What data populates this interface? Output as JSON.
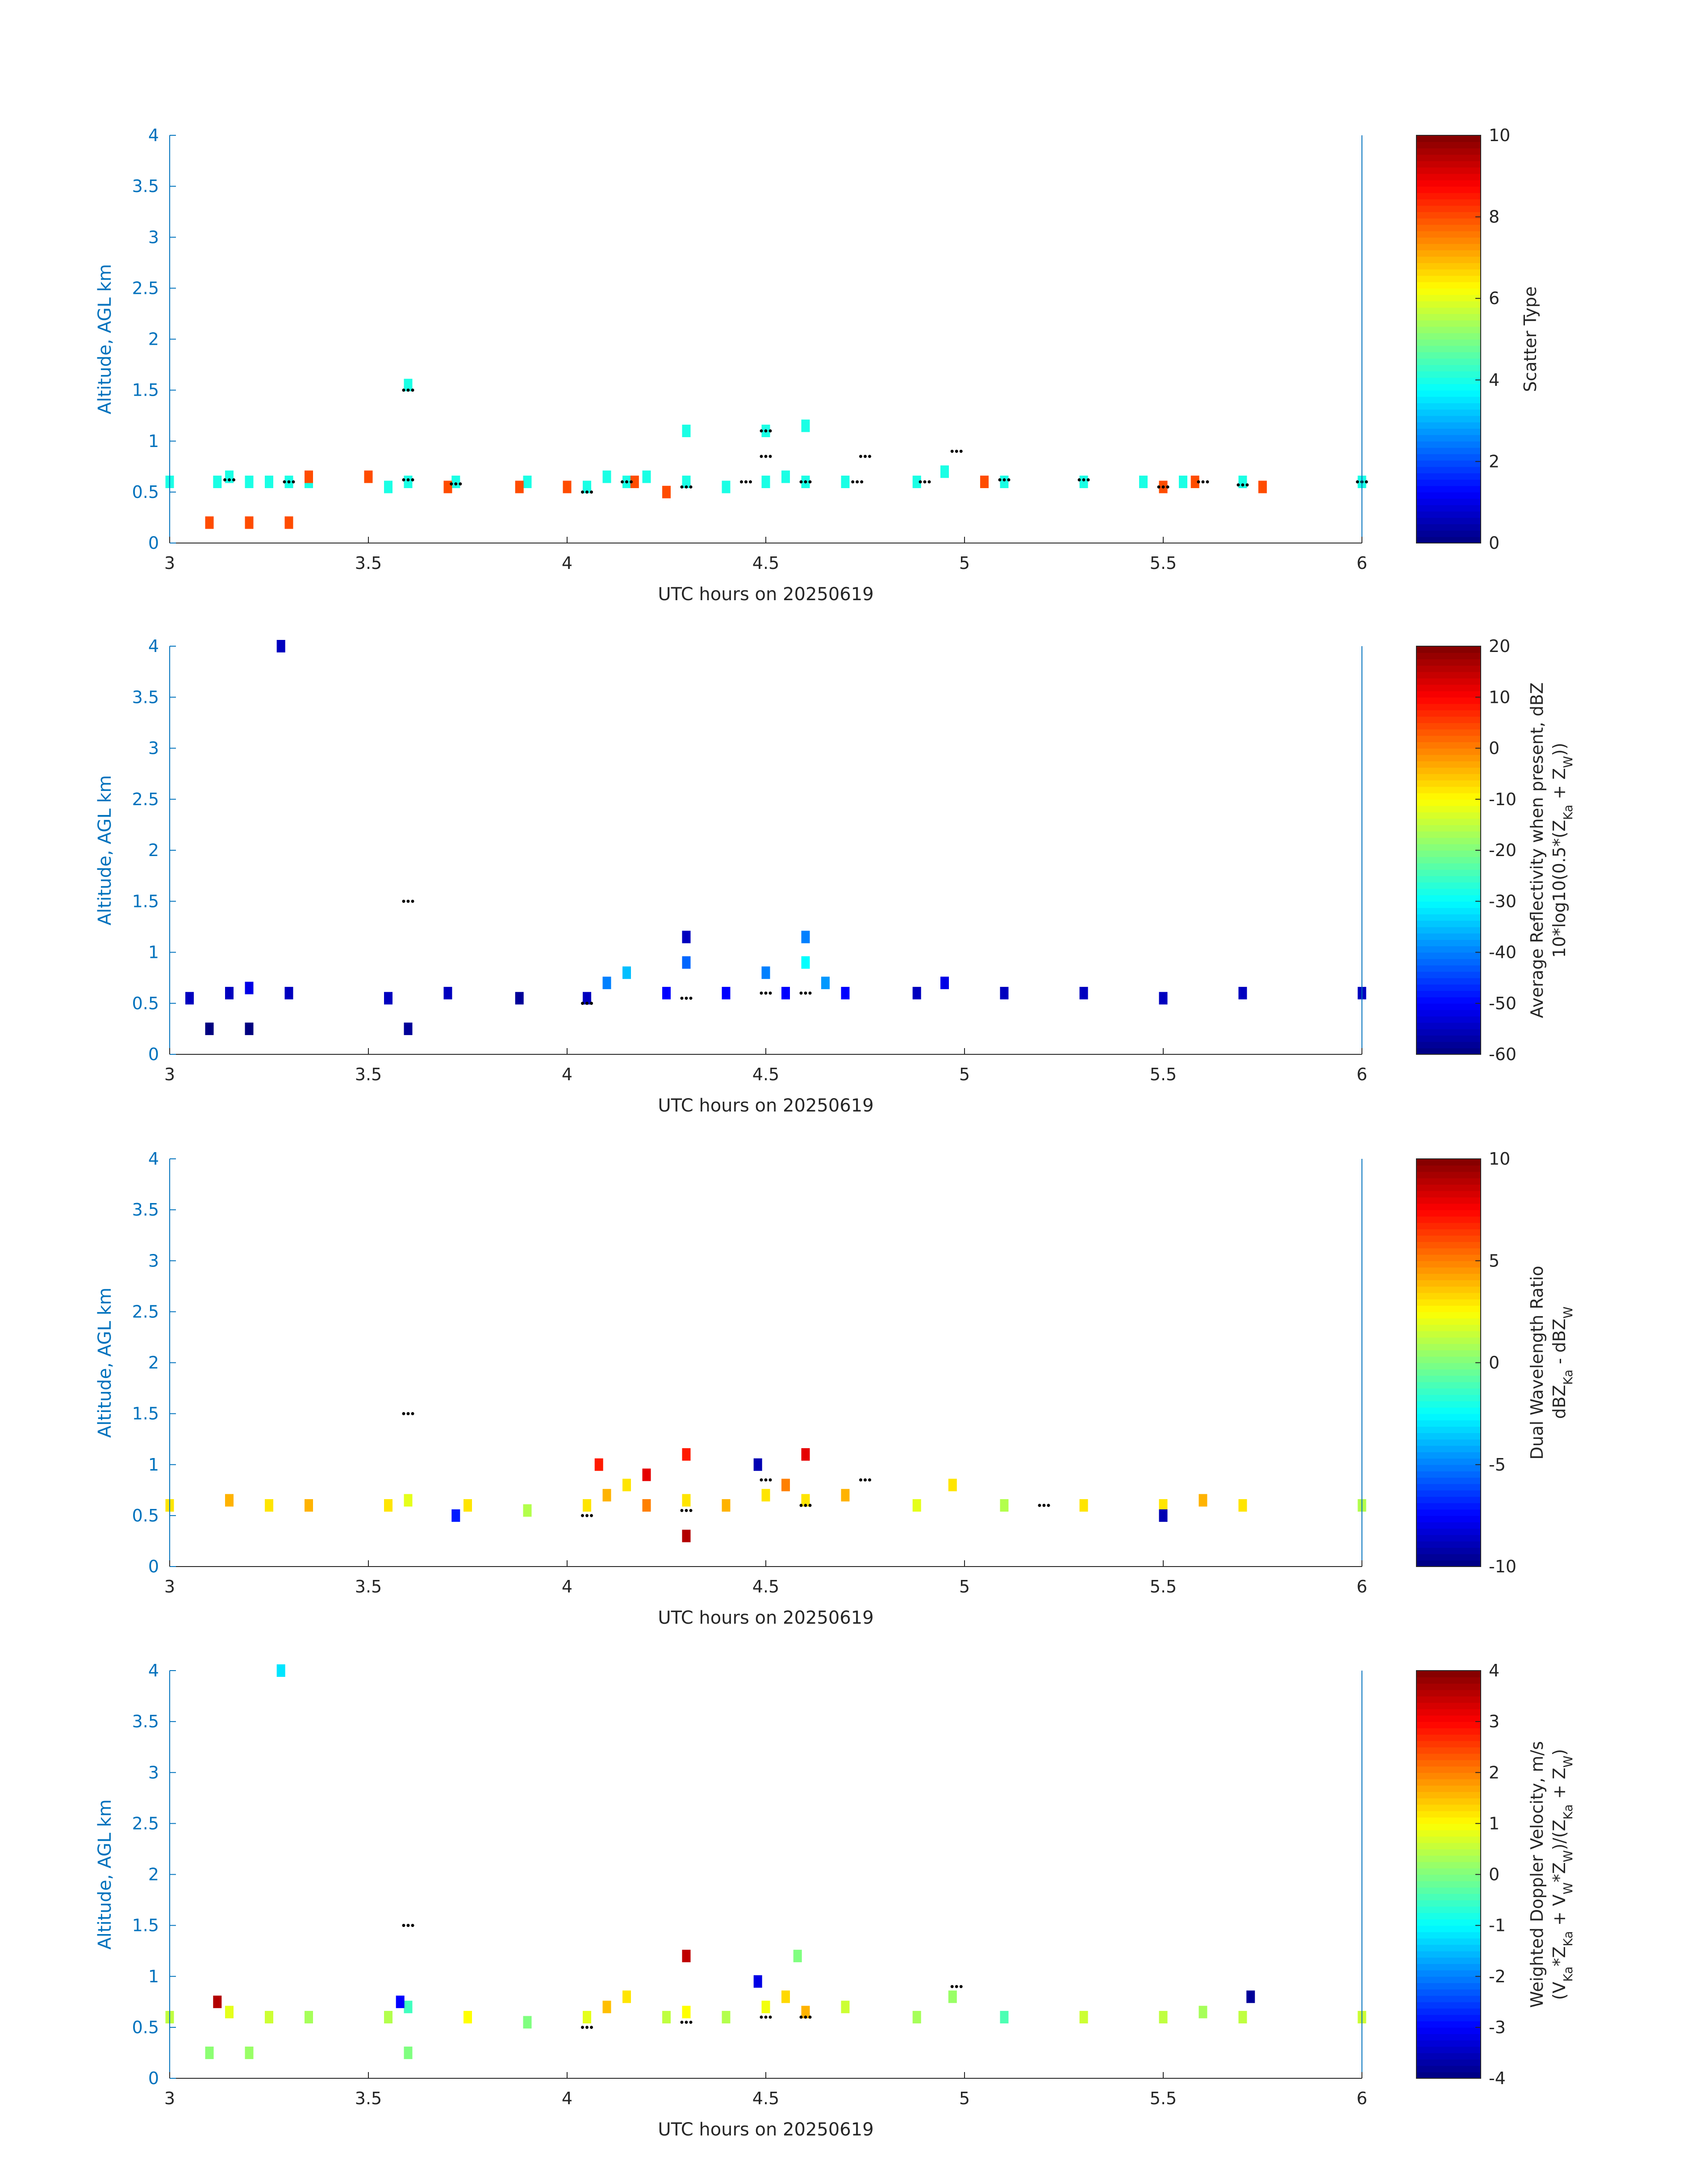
{
  "chart_data": [
    {
      "type": "heatmap",
      "title": "",
      "xlabel": "UTC hours on 20250619",
      "ylabel": "Altitude, AGL km",
      "xlim": [
        3,
        6
      ],
      "ylim": [
        0,
        4
      ],
      "xticks": [
        "3",
        "3.5",
        "4",
        "4.5",
        "5",
        "5.5",
        "6"
      ],
      "yticks": [
        "0",
        "0.5",
        "1",
        "1.5",
        "2",
        "2.5",
        "3",
        "3.5",
        "4"
      ],
      "colorbar": {
        "label": [
          "Scatter Type"
        ],
        "clim": [
          0,
          10
        ],
        "ticks": [
          "0",
          "2",
          "4",
          "6",
          "8",
          "10"
        ]
      },
      "colormap": "jet",
      "grid": false,
      "cells": [
        [
          3.0,
          0.6,
          4
        ],
        [
          3.12,
          0.6,
          4
        ],
        [
          3.15,
          0.65,
          4
        ],
        [
          3.2,
          0.6,
          4
        ],
        [
          3.25,
          0.6,
          4
        ],
        [
          3.3,
          0.6,
          4
        ],
        [
          3.35,
          0.6,
          4
        ],
        [
          3.55,
          0.55,
          4
        ],
        [
          3.6,
          0.6,
          4
        ],
        [
          3.72,
          0.6,
          4
        ],
        [
          3.9,
          0.6,
          4
        ],
        [
          4.05,
          0.55,
          4
        ],
        [
          4.1,
          0.65,
          4
        ],
        [
          4.15,
          0.6,
          4
        ],
        [
          4.2,
          0.65,
          4
        ],
        [
          4.3,
          0.6,
          4
        ],
        [
          4.4,
          0.55,
          4
        ],
        [
          4.5,
          0.6,
          4
        ],
        [
          4.55,
          0.65,
          4
        ],
        [
          4.6,
          0.6,
          4
        ],
        [
          4.7,
          0.6,
          4
        ],
        [
          4.88,
          0.6,
          4
        ],
        [
          4.95,
          0.7,
          4
        ],
        [
          5.1,
          0.6,
          4
        ],
        [
          5.3,
          0.6,
          4
        ],
        [
          5.45,
          0.6,
          4
        ],
        [
          5.55,
          0.6,
          4
        ],
        [
          5.7,
          0.6,
          4
        ],
        [
          6.0,
          0.6,
          4
        ],
        [
          3.6,
          1.55,
          4
        ],
        [
          4.3,
          1.1,
          4
        ],
        [
          4.5,
          1.1,
          4
        ],
        [
          4.6,
          1.15,
          4
        ],
        [
          3.1,
          0.2,
          8
        ],
        [
          3.2,
          0.2,
          8
        ],
        [
          3.3,
          0.2,
          8
        ],
        [
          3.35,
          0.65,
          8
        ],
        [
          3.5,
          0.65,
          8
        ],
        [
          3.7,
          0.55,
          8
        ],
        [
          3.88,
          0.55,
          8
        ],
        [
          4.0,
          0.55,
          8
        ],
        [
          4.17,
          0.6,
          8
        ],
        [
          4.25,
          0.5,
          8
        ],
        [
          5.05,
          0.6,
          8
        ],
        [
          5.5,
          0.55,
          8
        ],
        [
          5.58,
          0.6,
          8
        ],
        [
          5.75,
          0.55,
          8
        ]
      ],
      "track": [
        [
          3.15,
          0.62
        ],
        [
          3.3,
          0.6
        ],
        [
          3.6,
          0.62
        ],
        [
          3.6,
          1.5
        ],
        [
          3.72,
          0.58
        ],
        [
          4.05,
          0.5
        ],
        [
          4.15,
          0.6
        ],
        [
          4.3,
          0.55
        ],
        [
          4.45,
          0.6
        ],
        [
          4.5,
          0.85
        ],
        [
          4.5,
          1.1
        ],
        [
          4.6,
          0.6
        ],
        [
          4.73,
          0.6
        ],
        [
          4.75,
          0.85
        ],
        [
          4.9,
          0.6
        ],
        [
          4.98,
          0.9
        ],
        [
          5.1,
          0.62
        ],
        [
          5.3,
          0.62
        ],
        [
          5.5,
          0.55
        ],
        [
          5.6,
          0.6
        ],
        [
          5.7,
          0.57
        ],
        [
          6.0,
          0.6
        ]
      ]
    },
    {
      "type": "heatmap",
      "title": "",
      "xlabel": "UTC hours on 20250619",
      "ylabel": "Altitude, AGL km",
      "xlim": [
        3,
        6
      ],
      "ylim": [
        0,
        4
      ],
      "xticks": [
        "3",
        "3.5",
        "4",
        "4.5",
        "5",
        "5.5",
        "6"
      ],
      "yticks": [
        "0",
        "0.5",
        "1",
        "1.5",
        "2",
        "2.5",
        "3",
        "3.5",
        "4"
      ],
      "colorbar": {
        "label": [
          "Average Reflectivity when present, dBZ",
          "10*log10(0.5*(Z",
          "Ka",
          " + Z",
          "W",
          "))"
        ],
        "clim": [
          -60,
          20
        ],
        "ticks": [
          "-60",
          "-50",
          "-40",
          "-30",
          "-20",
          "-10",
          "0",
          "10",
          "20"
        ]
      },
      "colormap": "jet",
      "grid": false,
      "cells": [
        [
          3.05,
          0.55,
          -55
        ],
        [
          3.15,
          0.6,
          -55
        ],
        [
          3.2,
          0.65,
          -52
        ],
        [
          3.3,
          0.6,
          -55
        ],
        [
          3.55,
          0.55,
          -55
        ],
        [
          3.7,
          0.6,
          -55
        ],
        [
          3.88,
          0.55,
          -58
        ],
        [
          4.05,
          0.55,
          -55
        ],
        [
          4.1,
          0.7,
          -40
        ],
        [
          4.15,
          0.8,
          -35
        ],
        [
          4.25,
          0.6,
          -50
        ],
        [
          4.3,
          0.9,
          -42
        ],
        [
          4.4,
          0.6,
          -50
        ],
        [
          4.5,
          0.8,
          -40
        ],
        [
          4.55,
          0.6,
          -50
        ],
        [
          4.6,
          0.9,
          -30
        ],
        [
          4.65,
          0.7,
          -38
        ],
        [
          4.7,
          0.6,
          -50
        ],
        [
          4.88,
          0.6,
          -55
        ],
        [
          4.95,
          0.7,
          -52
        ],
        [
          5.1,
          0.6,
          -55
        ],
        [
          5.3,
          0.6,
          -55
        ],
        [
          5.5,
          0.55,
          -55
        ],
        [
          5.7,
          0.6,
          -55
        ],
        [
          6.0,
          0.6,
          -55
        ],
        [
          3.28,
          4.0,
          -55
        ],
        [
          3.1,
          0.25,
          -60
        ],
        [
          3.2,
          0.25,
          -60
        ],
        [
          3.6,
          0.25,
          -58
        ],
        [
          4.3,
          1.15,
          -55
        ],
        [
          4.6,
          1.15,
          -40
        ]
      ],
      "track": [
        [
          3.6,
          1.5
        ],
        [
          4.05,
          0.5
        ],
        [
          4.3,
          0.55
        ],
        [
          4.5,
          0.6
        ],
        [
          4.6,
          0.6
        ]
      ]
    },
    {
      "type": "heatmap",
      "title": "",
      "xlabel": "UTC hours on 20250619",
      "ylabel": "Altitude, AGL km",
      "xlim": [
        3,
        6
      ],
      "ylim": [
        0,
        4
      ],
      "xticks": [
        "3",
        "3.5",
        "4",
        "4.5",
        "5",
        "5.5",
        "6"
      ],
      "yticks": [
        "0",
        "0.5",
        "1",
        "1.5",
        "2",
        "2.5",
        "3",
        "3.5",
        "4"
      ],
      "colorbar": {
        "label": [
          "Dual Wavelength Ratio",
          "dBZ",
          "Ka",
          " - dBZ",
          "W"
        ],
        "clim": [
          -10,
          10
        ],
        "ticks": [
          "-10",
          "-5",
          "0",
          "5",
          "10"
        ]
      },
      "colormap": "jet",
      "grid": false,
      "cells": [
        [
          3.0,
          0.6,
          3
        ],
        [
          3.15,
          0.65,
          4
        ],
        [
          3.25,
          0.6,
          3
        ],
        [
          3.35,
          0.6,
          4
        ],
        [
          3.55,
          0.6,
          3
        ],
        [
          3.6,
          0.65,
          2
        ],
        [
          3.75,
          0.6,
          3
        ],
        [
          3.9,
          0.55,
          1
        ],
        [
          4.05,
          0.6,
          3
        ],
        [
          4.1,
          0.7,
          4
        ],
        [
          4.15,
          0.8,
          3
        ],
        [
          4.2,
          0.6,
          5
        ],
        [
          4.3,
          0.65,
          3
        ],
        [
          4.4,
          0.6,
          4
        ],
        [
          4.5,
          0.7,
          3
        ],
        [
          4.55,
          0.8,
          5
        ],
        [
          4.6,
          0.65,
          3
        ],
        [
          4.7,
          0.7,
          4
        ],
        [
          4.88,
          0.6,
          2
        ],
        [
          4.97,
          0.8,
          3
        ],
        [
          5.1,
          0.6,
          1
        ],
        [
          5.3,
          0.6,
          3
        ],
        [
          5.5,
          0.6,
          3
        ],
        [
          5.6,
          0.65,
          4
        ],
        [
          5.7,
          0.6,
          3
        ],
        [
          6.0,
          0.6,
          1
        ],
        [
          4.08,
          1.0,
          7
        ],
        [
          4.2,
          0.9,
          8
        ],
        [
          4.3,
          1.1,
          7
        ],
        [
          4.48,
          1.0,
          -9
        ],
        [
          4.6,
          1.1,
          8
        ],
        [
          4.3,
          0.3,
          9
        ],
        [
          3.72,
          0.5,
          -7
        ],
        [
          5.5,
          0.5,
          -9
        ]
      ],
      "track": [
        [
          3.6,
          1.5
        ],
        [
          4.05,
          0.5
        ],
        [
          4.3,
          0.55
        ],
        [
          4.5,
          0.85
        ],
        [
          4.6,
          0.6
        ],
        [
          4.75,
          0.85
        ],
        [
          5.2,
          0.6
        ]
      ]
    },
    {
      "type": "heatmap",
      "title": "",
      "xlabel": "UTC hours on 20250619",
      "ylabel": "Altitude, AGL km",
      "xlim": [
        3,
        6
      ],
      "ylim": [
        0,
        4
      ],
      "xticks": [
        "3",
        "3.5",
        "4",
        "4.5",
        "5",
        "5.5",
        "6"
      ],
      "yticks": [
        "0",
        "0.5",
        "1",
        "1.5",
        "2",
        "2.5",
        "3",
        "3.5",
        "4"
      ],
      "colorbar": {
        "label": [
          "Weighted Doppler Velocity, m/s",
          "(V",
          "Ka",
          "*Z",
          "Ka",
          " + V",
          "W",
          "*Z",
          "W",
          ")/(Z",
          "Ka",
          " + Z",
          "W",
          ")"
        ],
        "clim": [
          -4,
          4
        ],
        "ticks": [
          "-4",
          "-3",
          "-2",
          "-1",
          "0",
          "1",
          "2",
          "3",
          "4"
        ]
      },
      "colormap": "jet",
      "grid": false,
      "cells": [
        [
          3.0,
          0.6,
          0.5
        ],
        [
          3.15,
          0.65,
          0.8
        ],
        [
          3.25,
          0.6,
          0.6
        ],
        [
          3.35,
          0.6,
          0.3
        ],
        [
          3.55,
          0.6,
          0.4
        ],
        [
          3.6,
          0.7,
          -0.5
        ],
        [
          3.75,
          0.6,
          1.0
        ],
        [
          3.9,
          0.55,
          0.0
        ],
        [
          4.05,
          0.6,
          0.8
        ],
        [
          4.1,
          0.7,
          1.5
        ],
        [
          4.15,
          0.8,
          1.2
        ],
        [
          4.25,
          0.6,
          0.5
        ],
        [
          4.3,
          0.65,
          1.0
        ],
        [
          4.4,
          0.6,
          0.4
        ],
        [
          4.5,
          0.7,
          0.9
        ],
        [
          4.55,
          0.8,
          1.3
        ],
        [
          4.6,
          0.65,
          1.6
        ],
        [
          4.7,
          0.7,
          0.6
        ],
        [
          4.88,
          0.6,
          0.3
        ],
        [
          4.97,
          0.8,
          0.2
        ],
        [
          5.1,
          0.6,
          -0.4
        ],
        [
          5.3,
          0.6,
          0.6
        ],
        [
          5.5,
          0.6,
          0.5
        ],
        [
          5.6,
          0.65,
          0.3
        ],
        [
          5.7,
          0.6,
          0.5
        ],
        [
          6.0,
          0.6,
          0.6
        ],
        [
          3.28,
          4.0,
          -1.2
        ],
        [
          3.1,
          0.25,
          0.1
        ],
        [
          3.2,
          0.25,
          0.2
        ],
        [
          3.6,
          0.25,
          0.0
        ],
        [
          4.3,
          1.2,
          3.5
        ],
        [
          4.58,
          1.2,
          0.0
        ],
        [
          4.48,
          0.95,
          -3.2
        ],
        [
          3.12,
          0.75,
          3.6
        ],
        [
          3.58,
          0.75,
          -3.0
        ],
        [
          5.72,
          0.8,
          -3.8
        ]
      ],
      "track": [
        [
          3.6,
          1.5
        ],
        [
          4.05,
          0.5
        ],
        [
          4.3,
          0.55
        ],
        [
          4.5,
          0.6
        ],
        [
          4.6,
          0.6
        ],
        [
          4.98,
          0.9
        ]
      ]
    }
  ]
}
